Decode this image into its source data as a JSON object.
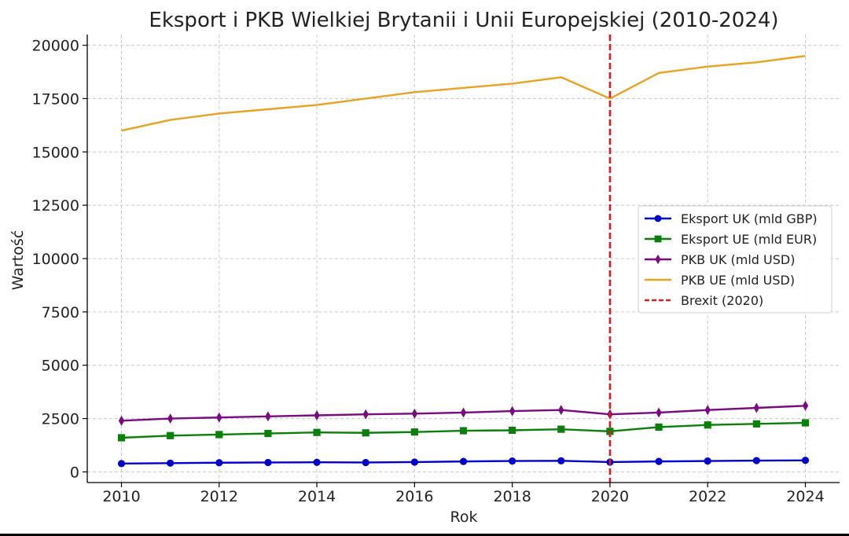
{
  "chart_data": {
    "type": "line",
    "title": "Eksport i PKB Wielkiej Brytanii i Unii Europejskiej (2010-2024)",
    "xlabel": "Rok",
    "ylabel": "Wartość",
    "xlim": [
      2009.3,
      2024.7
    ],
    "ylim": [
      -500,
      20500
    ],
    "xticks": [
      2010,
      2012,
      2014,
      2016,
      2018,
      2020,
      2022,
      2024
    ],
    "yticks": [
      0,
      2500,
      5000,
      7500,
      10000,
      12500,
      15000,
      17500,
      20000
    ],
    "grid": true,
    "legend_position": "right",
    "x": [
      2010,
      2011,
      2012,
      2013,
      2014,
      2015,
      2016,
      2017,
      2018,
      2019,
      2020,
      2021,
      2022,
      2023,
      2024
    ],
    "series": [
      {
        "name": "Eksport UK (mld GBP)",
        "color": "#0000cc",
        "marker": "circle",
        "values": [
          390,
          410,
          430,
          440,
          450,
          440,
          460,
          490,
          510,
          520,
          460,
          490,
          510,
          530,
          540
        ]
      },
      {
        "name": "Eksport UE (mld EUR)",
        "color": "#0a7f0a",
        "marker": "square",
        "values": [
          1600,
          1700,
          1750,
          1800,
          1850,
          1830,
          1870,
          1930,
          1950,
          2000,
          1900,
          2100,
          2200,
          2250,
          2300
        ]
      },
      {
        "name": "PKB UK (mld USD)",
        "color": "#7a0a80",
        "marker": "diamond",
        "values": [
          2400,
          2500,
          2550,
          2600,
          2650,
          2700,
          2730,
          2780,
          2850,
          2900,
          2700,
          2780,
          2900,
          3000,
          3100
        ]
      },
      {
        "name": "PKB UE (mld USD)",
        "color": "#e6a324",
        "marker": "none",
        "values": [
          16000,
          16500,
          16800,
          17000,
          17200,
          17500,
          17800,
          18000,
          18200,
          18500,
          17500,
          18700,
          19000,
          19200,
          19500
        ]
      }
    ],
    "vlines": [
      {
        "name": "Brexit (2020)",
        "x": 2020,
        "color": "#d62020",
        "style": "dashed"
      }
    ]
  }
}
